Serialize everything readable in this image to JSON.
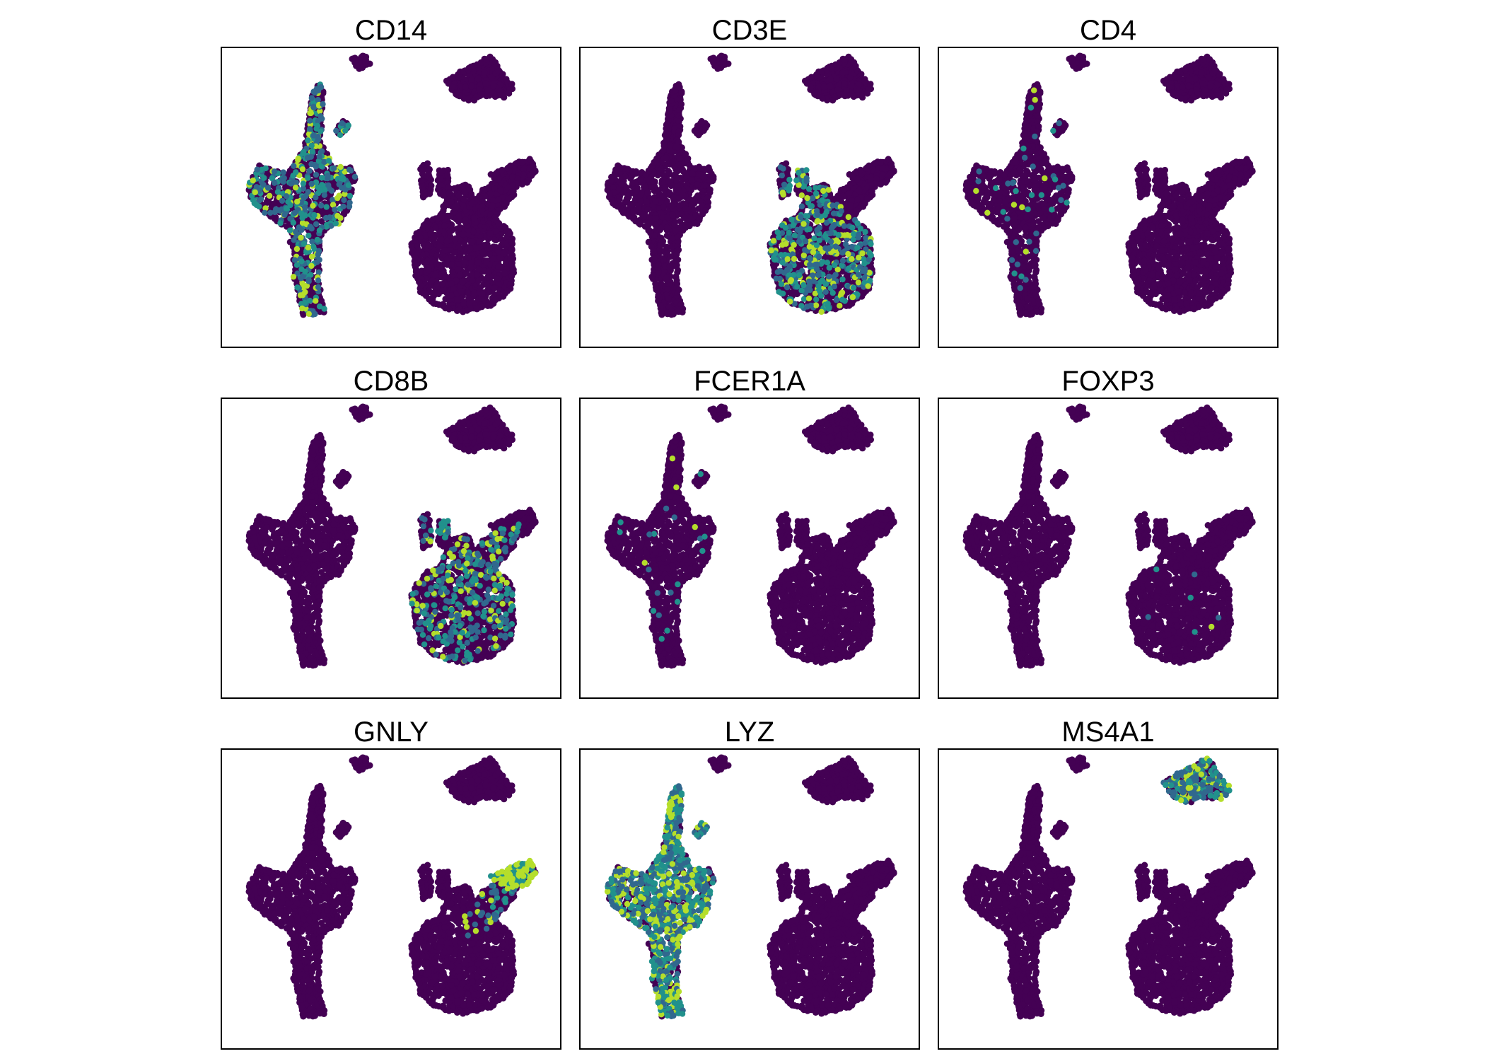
{
  "chart_data": {
    "type": "scatter",
    "layout": "3x3 grid of UMAP feature plots",
    "colormap": "viridis",
    "colors": {
      "low": "#440154",
      "mid": "#31688e",
      "teal": "#21918c",
      "high": "#b5de2b",
      "frame": "#000000"
    },
    "axes": "hidden (no ticks, no labels)",
    "legend": "none",
    "x_range": [
      -10,
      10
    ],
    "y_range": [
      -10,
      10
    ],
    "panels": [
      {
        "title": "CD14",
        "high_in": {
          "myeloid_left": 0.35
        }
      },
      {
        "title": "CD3E",
        "high_in": {
          "tcell_lower": 0.35
        }
      },
      {
        "title": "CD4",
        "high_in": {
          "myeloid_left": 0.04
        }
      },
      {
        "title": "CD8B",
        "high_in": {
          "tcell_lower": 0.25,
          "tcell_arm": 0.2
        }
      },
      {
        "title": "FCER1A",
        "high_in": {
          "myeloid_left": 0.02
        }
      },
      {
        "title": "FOXP3",
        "high_in": {
          "tcell_lower": 0.005
        }
      },
      {
        "title": "GNLY",
        "high_in": {
          "nk_tip": 0.9,
          "tcell_arm": 0.15
        }
      },
      {
        "title": "LYZ",
        "high_in": {
          "myeloid_left": 0.8
        }
      },
      {
        "title": "MS4A1",
        "high_in": {
          "bcell_top": 0.6
        }
      }
    ]
  }
}
